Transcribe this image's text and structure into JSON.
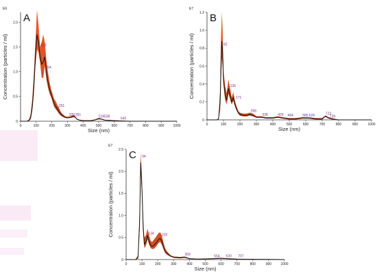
{
  "chart_data": [
    {
      "type": "line",
      "panel_label": "A",
      "exponent": "E6",
      "xlabel": "Size (nm)",
      "ylabel": "Concentration (particles / ml)",
      "xlim": [
        0,
        1000
      ],
      "ylim": [
        0,
        2.2
      ],
      "xticks": [
        0,
        100,
        200,
        300,
        400,
        500,
        600,
        700,
        800,
        900,
        1000
      ],
      "xtick_labels": [
        "0",
        "100",
        "200",
        "300",
        "400",
        "500",
        "600",
        "700",
        "800",
        "900",
        "1000"
      ],
      "yticks": [
        0,
        0.5,
        1.0,
        1.5,
        2.0
      ],
      "ytick_labels": [
        "0",
        "0.5",
        "1.0",
        "1.5",
        "2.0"
      ],
      "series": [
        {
          "x": [
            0,
            40,
            55,
            65,
            75,
            85,
            95,
            105,
            115,
            125,
            135,
            145,
            155,
            165,
            175,
            185,
            195,
            205,
            215,
            225,
            235,
            245,
            255,
            265,
            275,
            285,
            300,
            320,
            340,
            350,
            360,
            380,
            400,
            450,
            480,
            500,
            520,
            540,
            600,
            700,
            800,
            1000
          ],
          "y": [
            0,
            0,
            0.02,
            0.08,
            0.3,
            0.7,
            1.3,
            1.75,
            1.6,
            1.3,
            1.15,
            1.2,
            1.3,
            1.0,
            0.8,
            0.65,
            0.55,
            0.45,
            0.35,
            0.3,
            0.25,
            0.2,
            0.15,
            0.12,
            0.1,
            0.08,
            0.07,
            0.08,
            0.1,
            0.08,
            0.04,
            0.02,
            0.01,
            0.01,
            0.03,
            0.05,
            0.04,
            0.02,
            0.01,
            0,
            0,
            0
          ],
          "upper": [
            0,
            0,
            0.04,
            0.15,
            0.45,
            0.95,
            1.6,
            2.25,
            1.95,
            1.5,
            1.6,
            1.75,
            1.6,
            1.25,
            1.0,
            0.8,
            0.65,
            0.55,
            0.45,
            0.4,
            0.33,
            0.28,
            0.2,
            0.16,
            0.13,
            0.1,
            0.09,
            0.1,
            0.13,
            0.1,
            0.05,
            0.03,
            0.02,
            0.02,
            0.04,
            0.07,
            0.05,
            0.03,
            0.02,
            0,
            0,
            0
          ]
        }
      ],
      "annotations": [
        {
          "text": "118",
          "x": 130,
          "y": 1.5
        },
        {
          "text": "154",
          "x": 160,
          "y": 1.05
        },
        {
          "text": "251",
          "x": 245,
          "y": 0.28
        },
        {
          "text": "320",
          "x": 310,
          "y": 0.1
        },
        {
          "text": "351",
          "x": 350,
          "y": 0.1
        },
        {
          "text": "516",
          "x": 500,
          "y": 0.06
        },
        {
          "text": "538",
          "x": 535,
          "y": 0.06
        },
        {
          "text": "640",
          "x": 640,
          "y": 0.02
        }
      ]
    },
    {
      "type": "line",
      "panel_label": "B",
      "exponent": "E7",
      "xlabel": "Size (nm)",
      "ylabel": "Concentration (particles / ml)",
      "xlim": [
        0,
        1000
      ],
      "ylim": [
        0,
        1.2
      ],
      "xticks": [
        0,
        100,
        200,
        300,
        400,
        500,
        600,
        700,
        800,
        900,
        1000
      ],
      "xtick_labels": [
        "0",
        "100",
        "200",
        "300",
        "400",
        "500",
        "600",
        "700",
        "800",
        "900",
        "1000"
      ],
      "yticks": [
        0,
        0.2,
        0.4,
        0.6,
        0.8,
        1.0,
        1.2
      ],
      "ytick_labels": [
        "0",
        "0.2",
        "0.4",
        "0.6",
        "0.8",
        "1.0",
        "1.2"
      ],
      "series": [
        {
          "x": [
            0,
            60,
            70,
            80,
            85,
            90,
            95,
            100,
            110,
            120,
            130,
            140,
            150,
            160,
            170,
            180,
            190,
            200,
            220,
            240,
            260,
            280,
            300,
            330,
            360,
            400,
            430,
            460,
            500,
            540,
            580,
            620,
            660,
            700,
            720,
            740,
            760,
            800,
            1000
          ],
          "y": [
            0,
            0,
            0.01,
            0.2,
            0.6,
            0.88,
            0.75,
            0.45,
            0.28,
            0.22,
            0.35,
            0.28,
            0.2,
            0.25,
            0.17,
            0.12,
            0.08,
            0.06,
            0.05,
            0.05,
            0.06,
            0.05,
            0.03,
            0.03,
            0.02,
            0.02,
            0.03,
            0.02,
            0.01,
            0.01,
            0.02,
            0.02,
            0.01,
            0.01,
            0.04,
            0.02,
            0.01,
            0,
            0
          ],
          "upper": [
            0,
            0,
            0.02,
            0.35,
            0.9,
            1.2,
            1.0,
            0.55,
            0.38,
            0.3,
            0.45,
            0.36,
            0.25,
            0.31,
            0.21,
            0.15,
            0.1,
            0.08,
            0.07,
            0.07,
            0.08,
            0.07,
            0.04,
            0.04,
            0.03,
            0.03,
            0.04,
            0.03,
            0.02,
            0.02,
            0.03,
            0.03,
            0.02,
            0.02,
            0.05,
            0.03,
            0.02,
            0,
            0
          ]
        }
      ],
      "annotations": [
        {
          "text": "92",
          "x": 100,
          "y": 0.82
        },
        {
          "text": "136",
          "x": 140,
          "y": 0.36
        },
        {
          "text": "171",
          "x": 175,
          "y": 0.23
        },
        {
          "text": "268",
          "x": 265,
          "y": 0.08
        },
        {
          "text": "338",
          "x": 335,
          "y": 0.04
        },
        {
          "text": "429",
          "x": 430,
          "y": 0.04
        },
        {
          "text": "494",
          "x": 490,
          "y": 0.03
        },
        {
          "text": "585",
          "x": 580,
          "y": 0.03
        },
        {
          "text": "629",
          "x": 620,
          "y": 0.03
        },
        {
          "text": "723",
          "x": 720,
          "y": 0.05
        },
        {
          "text": "739",
          "x": 745,
          "y": 0.02
        }
      ]
    },
    {
      "type": "line",
      "panel_label": "C",
      "exponent": "E7",
      "xlabel": "Size (nm)",
      "ylabel": "Concentration (particles / ml)",
      "xlim": [
        0,
        1000
      ],
      "ylim": [
        0,
        2.5
      ],
      "xticks": [
        0,
        100,
        200,
        300,
        400,
        500,
        600,
        700,
        800,
        900,
        1000
      ],
      "xtick_labels": [
        "0",
        "100",
        "200",
        "300",
        "400",
        "500",
        "600",
        "700",
        "800",
        "900",
        "1000"
      ],
      "yticks": [
        0,
        0.5,
        1.0,
        1.5,
        2.0,
        2.5
      ],
      "ytick_labels": [
        "0",
        "0.5",
        "1.0",
        "1.5",
        "2.0",
        "2.5"
      ],
      "series": [
        {
          "x": [
            0,
            60,
            75,
            85,
            92,
            100,
            108,
            115,
            125,
            135,
            145,
            155,
            165,
            175,
            190,
            205,
            215,
            225,
            235,
            245,
            255,
            265,
            280,
            300,
            340,
            370,
            400,
            450,
            550,
            600,
            640,
            700,
            1000
          ],
          "y": [
            0,
            0,
            0.05,
            0.8,
            2.2,
            1.6,
            0.7,
            0.35,
            0.4,
            0.55,
            0.42,
            0.32,
            0.3,
            0.32,
            0.38,
            0.46,
            0.48,
            0.42,
            0.3,
            0.2,
            0.15,
            0.12,
            0.08,
            0.05,
            0.04,
            0.05,
            0.02,
            0.01,
            0.02,
            0.03,
            0.02,
            0.01,
            0
          ],
          "upper": [
            0,
            0,
            0.1,
            1.1,
            2.45,
            1.85,
            0.9,
            0.5,
            0.55,
            0.7,
            0.55,
            0.42,
            0.4,
            0.45,
            0.52,
            0.6,
            0.62,
            0.55,
            0.4,
            0.27,
            0.2,
            0.16,
            0.1,
            0.07,
            0.06,
            0.07,
            0.03,
            0.02,
            0.03,
            0.04,
            0.03,
            0.02,
            0
          ]
        }
      ],
      "annotations": [
        {
          "text": "94",
          "x": 100,
          "y": 2.3
        },
        {
          "text": "134",
          "x": 140,
          "y": 0.55
        },
        {
          "text": "220",
          "x": 225,
          "y": 0.52
        },
        {
          "text": "369",
          "x": 370,
          "y": 0.08
        },
        {
          "text": "554",
          "x": 555,
          "y": 0.04
        },
        {
          "text": "630",
          "x": 630,
          "y": 0.04
        },
        {
          "text": "707",
          "x": 707,
          "y": 0.04
        }
      ]
    }
  ]
}
